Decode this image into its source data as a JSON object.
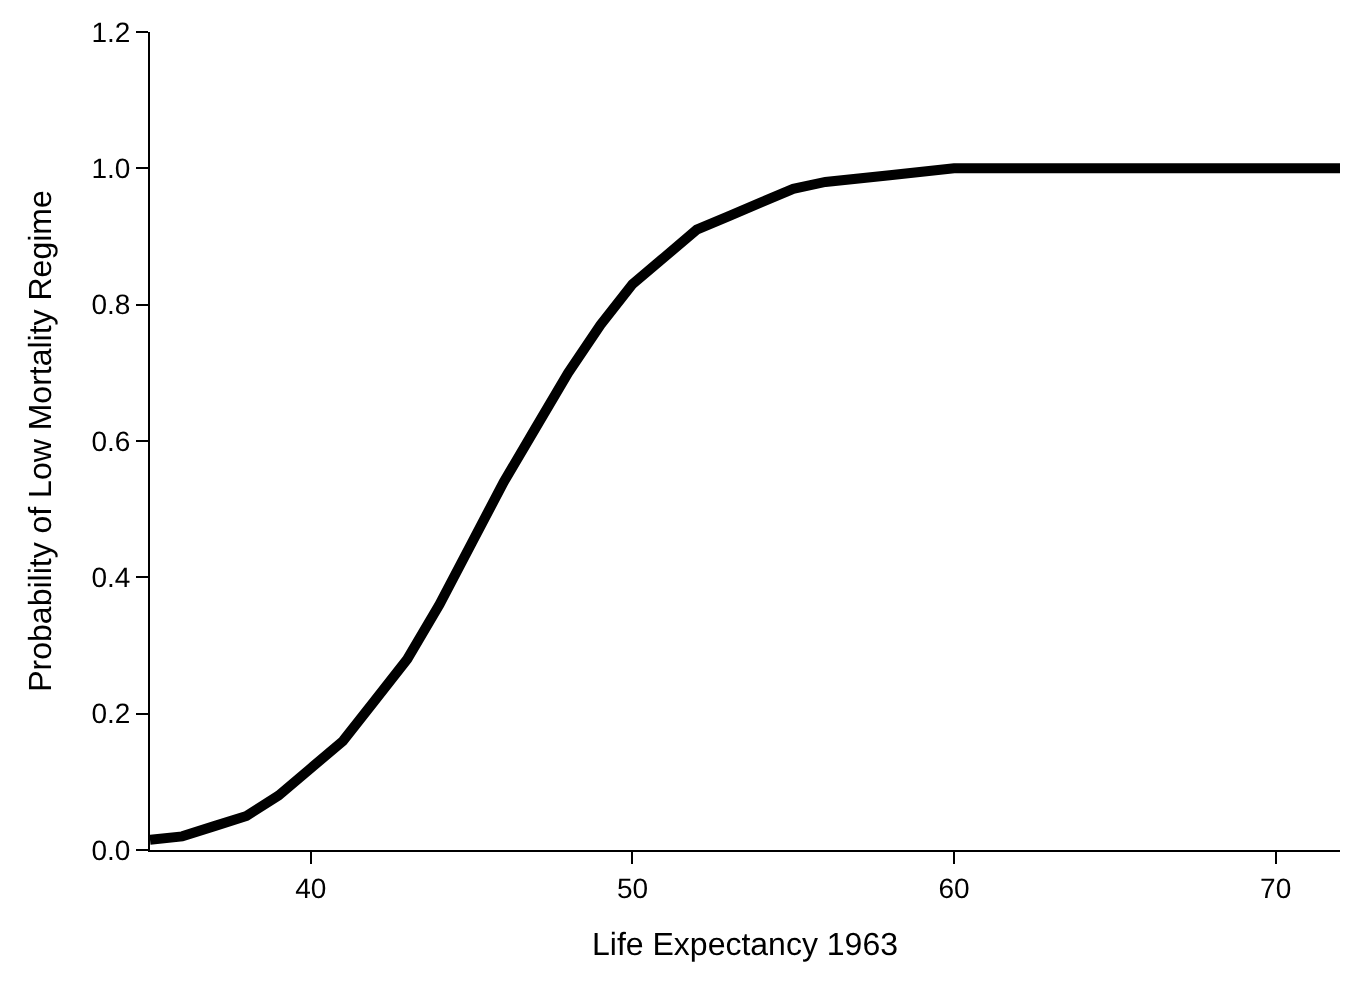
{
  "chart_data": {
    "type": "line",
    "xlabel": "Life Expectancy 1963",
    "ylabel": "Probability of Low Mortality Regime",
    "x": [
      35,
      36,
      37,
      38,
      39,
      40,
      41,
      42,
      43,
      44,
      45,
      46,
      47,
      48,
      49,
      50,
      51,
      52,
      53,
      54,
      55,
      56,
      58,
      60,
      65,
      72
    ],
    "series": [
      {
        "color": "#000000",
        "values": [
          0.015,
          0.02,
          0.035,
          0.05,
          0.08,
          0.12,
          0.16,
          0.22,
          0.28,
          0.36,
          0.45,
          0.54,
          0.62,
          0.7,
          0.77,
          0.83,
          0.87,
          0.91,
          0.93,
          0.95,
          0.97,
          0.98,
          0.99,
          1.0,
          1.0,
          1.0
        ]
      }
    ],
    "xlim": [
      35,
      72
    ],
    "xticks": [
      40,
      50,
      60,
      70
    ],
    "ylim": [
      0,
      1.2
    ],
    "yticks": [
      {
        "value": 0,
        "label": "0.0"
      },
      {
        "value": 0.2,
        "label": "0.2"
      },
      {
        "value": 0.4,
        "label": "0.4"
      },
      {
        "value": 0.6,
        "label": "0.6"
      },
      {
        "value": 0.8,
        "label": "0.8"
      },
      {
        "value": 1.0,
        "label": "1.0"
      },
      {
        "value": 1.2,
        "label": "1.2"
      }
    ],
    "marker": "none",
    "line_style": "solid"
  }
}
